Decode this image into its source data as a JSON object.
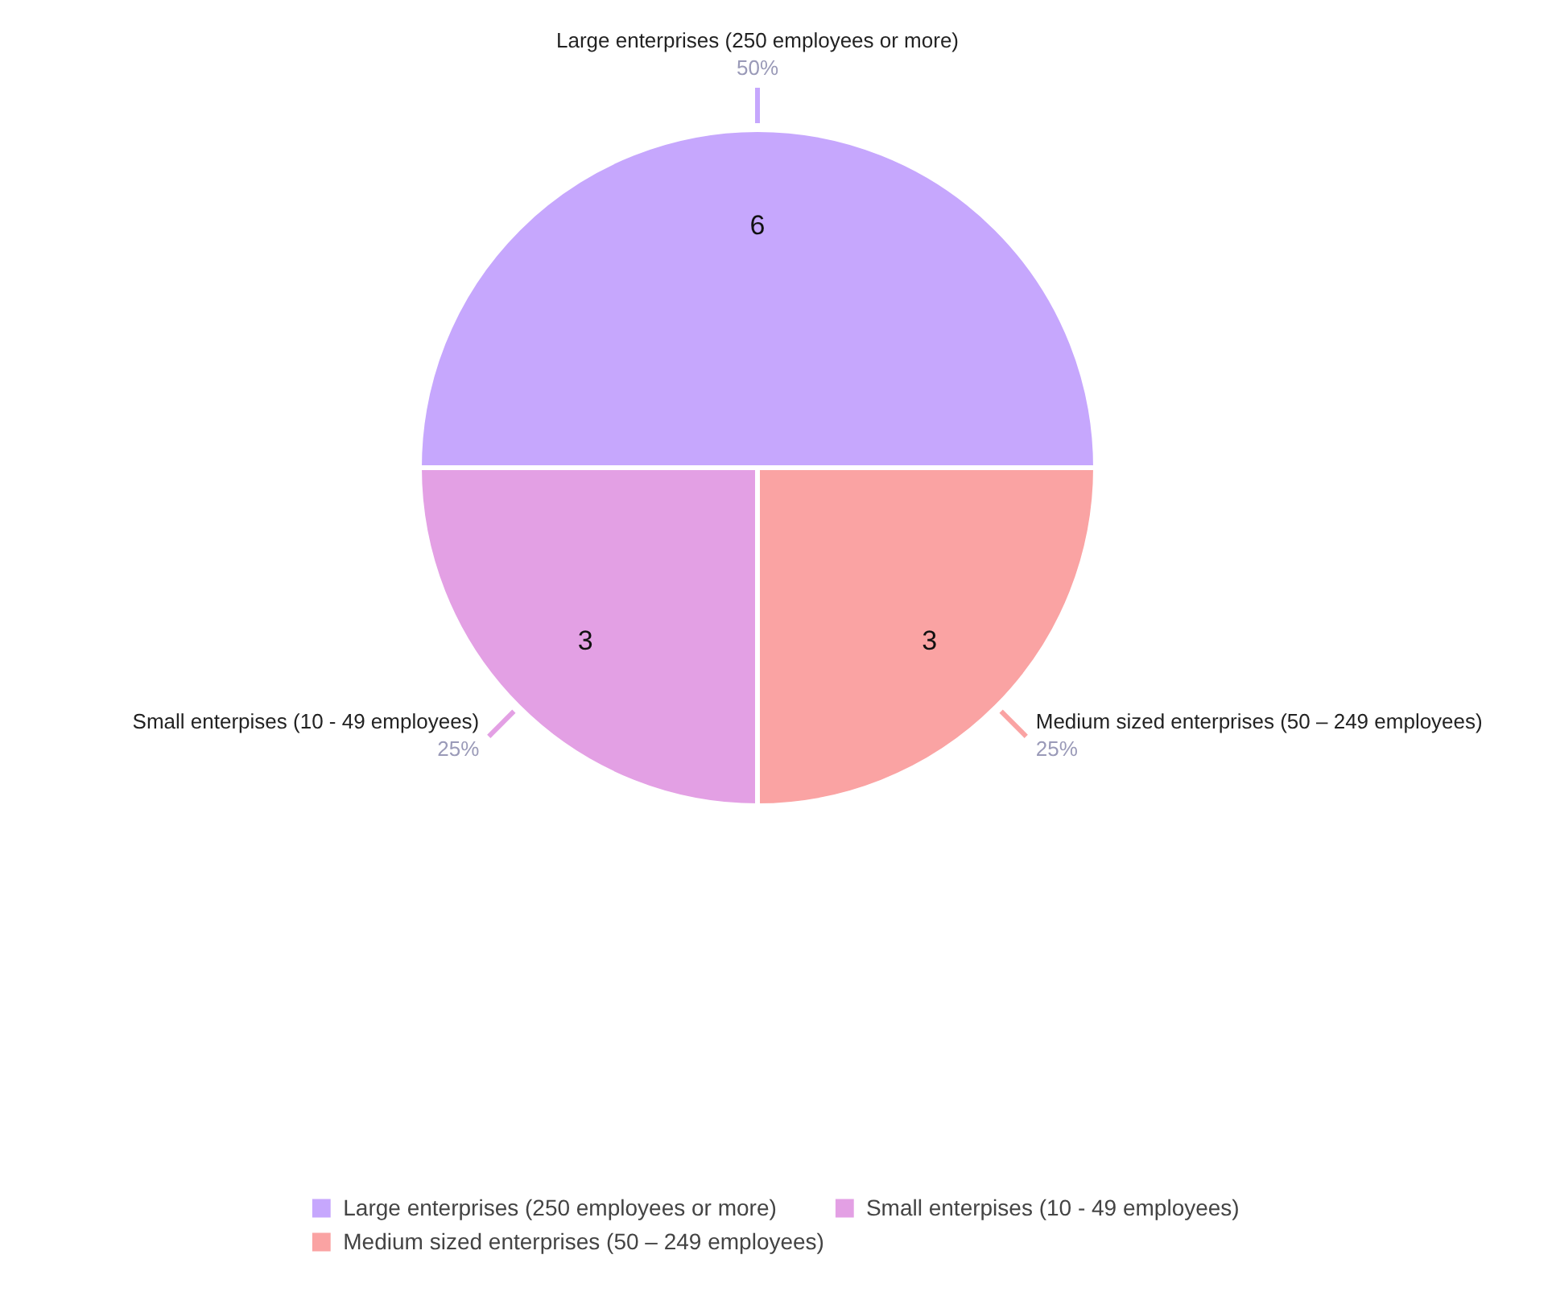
{
  "chart_data": {
    "type": "pie",
    "categories": [
      "Large enterprises (250 employees or more)",
      "Small enterpises (10 - 49 employees)",
      "Medium sized enterprises (50 – 249 employees)"
    ],
    "values": [
      6,
      3,
      3
    ],
    "colors": [
      "#c6a7fd",
      "#e3a0e4",
      "#faa3a3"
    ],
    "data_labels": true,
    "annotations": [
      {
        "text": "50%",
        "x": "Large enterprises (250 employees or more)"
      },
      {
        "text": "25%",
        "x": "Small enterpises (10 - 49 employees)"
      },
      {
        "text": "25%",
        "x": "Medium sized enterprises (50 – 249 employees)"
      }
    ],
    "legend": "bottom"
  }
}
